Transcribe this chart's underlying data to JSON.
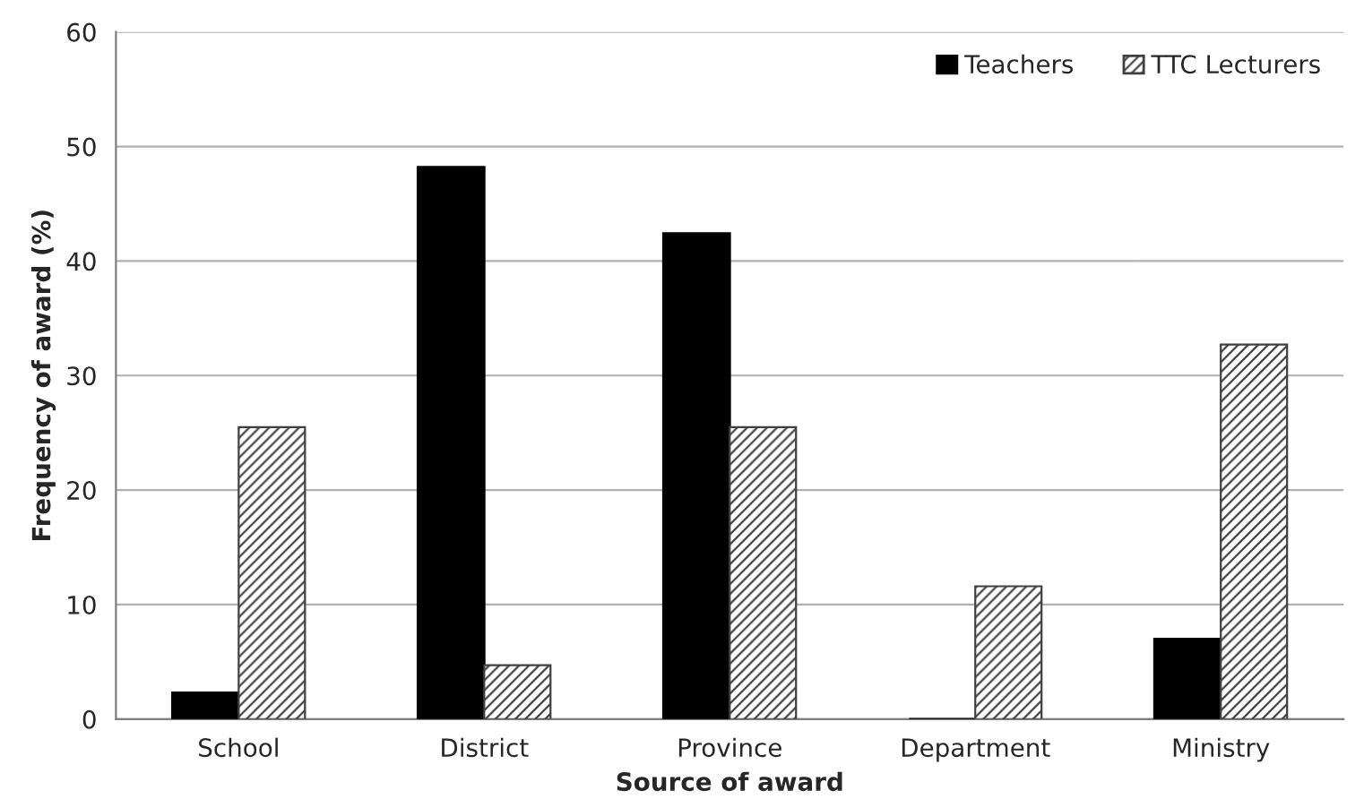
{
  "chart_data": {
    "type": "bar",
    "xlabel": "Source of award",
    "ylabel": "Frequency of award (%)",
    "categories": [
      "School",
      "District",
      "Province",
      "Department",
      "Ministry"
    ],
    "series": [
      {
        "name": "Teachers",
        "color": "#000000",
        "values": [
          2.3,
          48.2,
          42.4,
          0,
          7.0
        ]
      },
      {
        "name": "TTC Lecturers",
        "color": "#404040",
        "values": [
          25.5,
          4.7,
          25.5,
          11.6,
          32.7
        ]
      }
    ],
    "ylim": [
      0,
      60
    ],
    "yticks": [
      0,
      10,
      20,
      30,
      40,
      50,
      60
    ],
    "grid": "y",
    "legend": "top right"
  }
}
